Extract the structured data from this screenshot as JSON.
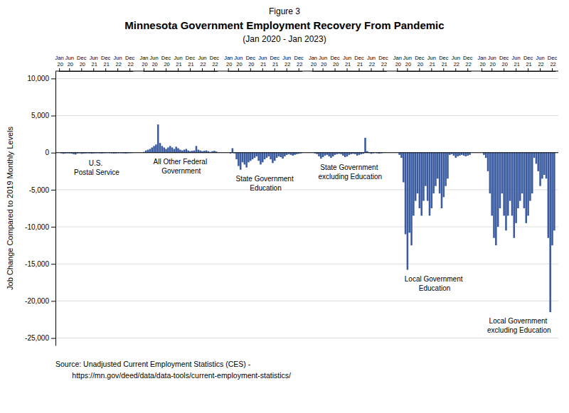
{
  "chart_data": {
    "type": "bar",
    "title": "Minnesota Government Employment Recovery From Pandemic",
    "subtitle": "(Jan 2020 - Jan 2023)",
    "ylabel": "Job Change Compared to 2019 Monthly Levels",
    "annotations": [
      "Figure 3",
      "Source: Unadjusted Current Employment Statistics (CES) -",
      "        https://mn.gov/deed/data/data-tools/current-employment-statistics/"
    ],
    "categories": [
      "Jan\n20",
      null,
      null,
      null,
      null,
      "Jun\n20",
      null,
      null,
      null,
      null,
      null,
      "Dec\n20",
      null,
      null,
      null,
      null,
      null,
      "Jun\n21",
      null,
      null,
      null,
      null,
      null,
      "Dec\n21",
      null,
      null,
      null,
      null,
      null,
      "Jun\n22",
      null,
      null,
      null,
      null,
      null,
      "Dec\n22",
      null
    ],
    "series": [
      {
        "name": "U.S.\nPostal Service",
        "values": [
          0,
          -100,
          -150,
          -100,
          -80,
          -100,
          -120,
          -200,
          -250,
          -100,
          -80,
          -150,
          -120,
          -100,
          -80,
          -100,
          -130,
          -100,
          -80,
          -70,
          -90,
          -110,
          -80,
          -60,
          -50,
          -70,
          -90,
          -120,
          -100,
          -80,
          -60,
          -70,
          -90,
          -110,
          -80,
          -60,
          -50
        ]
      },
      {
        "name": "All Other Federal\nGovernment",
        "values": [
          100,
          300,
          400,
          500,
          700,
          900,
          1100,
          3800,
          1300,
          900,
          700,
          500,
          700,
          900,
          700,
          500,
          800,
          600,
          400,
          300,
          400,
          500,
          300,
          200,
          250,
          300,
          900,
          400,
          300,
          200,
          250,
          300,
          200,
          100,
          200,
          250,
          150
        ]
      },
      {
        "name": "State Government\nEducation",
        "values": [
          0,
          -100,
          600,
          -100,
          -900,
          -1800,
          -2300,
          -1300,
          -1600,
          -2000,
          -1300,
          -1100,
          -900,
          -700,
          -500,
          -1100,
          -1600,
          -1300,
          -900,
          -700,
          -500,
          -900,
          -1400,
          -1100,
          -700,
          -500,
          -600,
          -800,
          -500,
          -300,
          -200,
          -300,
          -400,
          -300,
          -200,
          -150,
          -100
        ]
      },
      {
        "name": "State Government\nexcluding Education",
        "values": [
          0,
          -100,
          -200,
          -500,
          -800,
          -600,
          -400,
          -300,
          -500,
          -700,
          -500,
          -300,
          -200,
          -150,
          -200,
          -400,
          -600,
          -500,
          -300,
          -200,
          -150,
          -200,
          -400,
          -300,
          -200,
          -150,
          2000,
          200,
          -50,
          -150,
          -80,
          -30,
          -80,
          -130,
          -80,
          -30,
          -20
        ]
      },
      {
        "name": "Local Government\nEducation",
        "values": [
          0,
          -300,
          -700,
          -4000,
          -11000,
          -15800,
          -10800,
          -12500,
          -8500,
          -6500,
          -5500,
          -7500,
          -8500,
          -6500,
          -4500,
          -6500,
          -8500,
          -7500,
          -5500,
          -4500,
          -3500,
          -5500,
          -7500,
          -6000,
          -4500,
          -3500,
          -300,
          -200,
          -400,
          -700,
          -500,
          -400,
          -300,
          -400,
          -500,
          -400,
          -300
        ]
      },
      {
        "name": "Local Government\nexcluding Education",
        "values": [
          0,
          -300,
          -700,
          -2500,
          -5500,
          -8500,
          -11500,
          -12500,
          -10000,
          -7500,
          -5500,
          -8500,
          -10500,
          -8500,
          -6500,
          -8500,
          -11500,
          -9500,
          -7500,
          -6500,
          -5500,
          -7500,
          -9500,
          -8500,
          -6500,
          -5500,
          -700,
          -1500,
          -2500,
          -4500,
          -3500,
          -3000,
          -3500,
          -11500,
          -21500,
          -12500,
          -10500
        ]
      }
    ],
    "color": "#3A5BA0",
    "ylim": [
      -26000,
      11000
    ],
    "yticks": [
      {
        "value": -25000,
        "label": "-25,000"
      },
      {
        "value": -20000,
        "label": "-20,000"
      },
      {
        "value": -15000,
        "label": "-15,000"
      },
      {
        "value": -10000,
        "label": "-10,000"
      },
      {
        "value": -5000,
        "label": "-5,000"
      },
      0,
      {
        "value": 5000,
        "label": "5,000"
      },
      {
        "value": 10000,
        "label": "10,000"
      }
    ],
    "grid": true
  }
}
